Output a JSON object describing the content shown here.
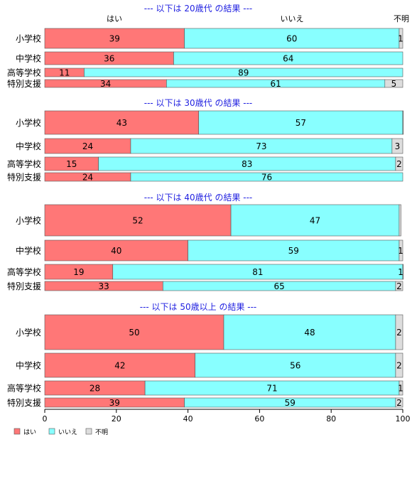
{
  "chart_data": {
    "type": "bar",
    "orientation": "horizontal",
    "stacked": true,
    "xlim": [
      0,
      100
    ],
    "xticks": [
      0,
      20,
      40,
      60,
      80,
      100
    ],
    "header_labels": [
      "はい",
      "いいえ",
      "不明"
    ],
    "series": [
      {
        "name": "はい",
        "color": "#ff7777"
      },
      {
        "name": "いいえ",
        "color": "#88ffff"
      },
      {
        "name": "不明",
        "color": "#dddddd"
      }
    ],
    "legend": {
      "placement": "bottom-left",
      "items": [
        "はい",
        "いいえ",
        "不明"
      ]
    },
    "grid": false,
    "panels": [
      {
        "title": "--- 以下は 20歳代 の結果 ---",
        "categories": [
          "小学校",
          "中学校",
          "高等学校",
          "特別支援"
        ],
        "values": [
          [
            39,
            60,
            1
          ],
          [
            36,
            64,
            0
          ],
          [
            11,
            89,
            0
          ],
          [
            34,
            61,
            5
          ]
        ],
        "labels": [
          [
            "39",
            "60",
            "1"
          ],
          [
            "36",
            "64",
            ""
          ],
          [
            "11",
            "89",
            ""
          ],
          [
            "34",
            "61",
            "5"
          ]
        ]
      },
      {
        "title": "--- 以下は 30歳代 の結果 ---",
        "categories": [
          "小学校",
          "中学校",
          "高等学校",
          "特別支援"
        ],
        "values": [
          [
            43,
            57,
            0.5
          ],
          [
            24,
            73,
            3
          ],
          [
            15,
            83,
            2
          ],
          [
            24,
            76,
            0
          ]
        ],
        "labels": [
          [
            "43",
            "57",
            ""
          ],
          [
            "24",
            "73",
            "3"
          ],
          [
            "15",
            "83",
            "2"
          ],
          [
            "24",
            "76",
            ""
          ]
        ]
      },
      {
        "title": "--- 以下は 40歳代 の結果 ---",
        "categories": [
          "小学校",
          "中学校",
          "高等学校",
          "特別支援"
        ],
        "values": [
          [
            52,
            47,
            0.5
          ],
          [
            40,
            59,
            1
          ],
          [
            19,
            81,
            1
          ],
          [
            33,
            65,
            2
          ]
        ],
        "labels": [
          [
            "52",
            "47",
            ""
          ],
          [
            "40",
            "59",
            "1"
          ],
          [
            "19",
            "81",
            "1"
          ],
          [
            "33",
            "65",
            "2"
          ]
        ]
      },
      {
        "title": "--- 以下は 50歳以上 の結果 ---",
        "categories": [
          "小学校",
          "中学校",
          "高等学校",
          "特別支援"
        ],
        "values": [
          [
            50,
            48,
            2
          ],
          [
            42,
            56,
            2
          ],
          [
            28,
            71,
            1
          ],
          [
            39,
            59,
            2
          ]
        ],
        "labels": [
          [
            "50",
            "48",
            "2"
          ],
          [
            "42",
            "56",
            "2"
          ],
          [
            "28",
            "71",
            "1"
          ],
          [
            "39",
            "59",
            "2"
          ]
        ]
      }
    ]
  }
}
